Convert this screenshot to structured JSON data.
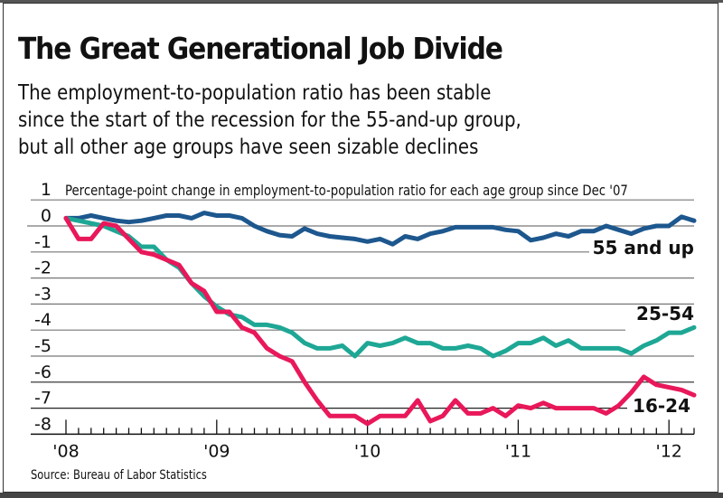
{
  "header": {
    "title": "The Great Generational Job Divide",
    "subtitle_lines": [
      "The employment-to-population ratio has been stable",
      "since the start of the recession for the 55-and-up group,",
      "but all other age groups have seen sizable declines"
    ]
  },
  "footer": {
    "source": "Source: Bureau of Labor Statistics"
  },
  "chart_data": {
    "type": "line",
    "title": "The Great Generational Job Divide",
    "ylabel": "Percentage-point change in employment-to-population ratio for each age group since Dec '07",
    "xlabel": "",
    "ylim": [
      -8,
      1
    ],
    "yticks": [
      1,
      0,
      -1,
      -2,
      -3,
      -4,
      -5,
      -6,
      -7,
      -8
    ],
    "ytick_labels": [
      "1",
      "0",
      "-1",
      "-2",
      "-3",
      "-4",
      "-5",
      "-6",
      "-7",
      "-8"
    ],
    "x_start": "2008-01",
    "x_end": "2012-03",
    "x_frequency": "monthly",
    "xtick_labels": [
      "'08",
      "'09",
      "'10",
      "'11",
      "'12"
    ],
    "grid": true,
    "legend": "inline labels at right end of each line",
    "series": [
      {
        "name": "55 and up",
        "color": "#1d578e",
        "values": [
          0.3,
          0.3,
          0.4,
          0.3,
          0.2,
          0.15,
          0.2,
          0.3,
          0.4,
          0.4,
          0.3,
          0.5,
          0.4,
          0.4,
          0.3,
          0.0,
          -0.2,
          -0.35,
          -0.4,
          -0.1,
          -0.3,
          -0.4,
          -0.45,
          -0.5,
          -0.6,
          -0.5,
          -0.7,
          -0.4,
          -0.5,
          -0.3,
          -0.2,
          -0.05,
          -0.05,
          -0.05,
          -0.05,
          -0.15,
          -0.2,
          -0.55,
          -0.45,
          -0.3,
          -0.4,
          -0.2,
          -0.2,
          0.0,
          -0.15,
          -0.3,
          -0.1,
          0.0,
          0.0,
          0.35,
          0.2
        ]
      },
      {
        "name": "25-54",
        "color": "#1ea795",
        "values": [
          0.3,
          0.2,
          0.1,
          0.0,
          -0.2,
          -0.4,
          -0.8,
          -0.8,
          -1.3,
          -1.6,
          -2.2,
          -2.7,
          -3.1,
          -3.4,
          -3.5,
          -3.8,
          -3.8,
          -3.9,
          -4.1,
          -4.5,
          -4.7,
          -4.7,
          -4.6,
          -5.0,
          -4.5,
          -4.6,
          -4.5,
          -4.3,
          -4.5,
          -4.5,
          -4.7,
          -4.7,
          -4.6,
          -4.7,
          -5.0,
          -4.8,
          -4.5,
          -4.5,
          -4.3,
          -4.6,
          -4.4,
          -4.7,
          -4.7,
          -4.7,
          -4.7,
          -4.9,
          -4.6,
          -4.4,
          -4.1,
          -4.1,
          -3.9
        ]
      },
      {
        "name": "16-24",
        "color": "#e8185a",
        "values": [
          0.3,
          -0.5,
          -0.5,
          0.1,
          0.0,
          -0.5,
          -1.0,
          -1.1,
          -1.3,
          -1.5,
          -2.2,
          -2.5,
          -3.3,
          -3.3,
          -3.9,
          -4.1,
          -4.7,
          -5.0,
          -5.2,
          -6.0,
          -6.7,
          -7.3,
          -7.3,
          -7.3,
          -7.6,
          -7.3,
          -7.3,
          -7.3,
          -6.7,
          -7.5,
          -7.3,
          -6.7,
          -7.2,
          -7.2,
          -7.0,
          -7.3,
          -6.9,
          -7.0,
          -6.8,
          -7.0,
          -7.0,
          -7.0,
          -7.0,
          -7.2,
          -6.9,
          -6.4,
          -5.8,
          -6.1,
          -6.2,
          -6.3,
          -6.5
        ]
      }
    ]
  }
}
